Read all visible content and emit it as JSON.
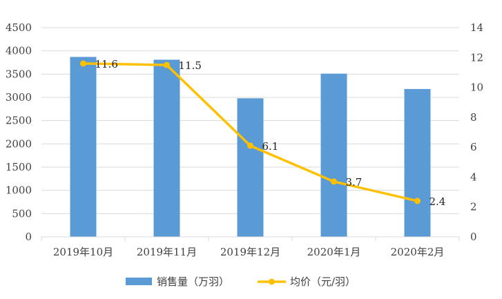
{
  "chart_data": {
    "type": "bar",
    "categories": [
      "2019年10月",
      "2019年11月",
      "2019年12月",
      "2020年1月",
      "2020年2月"
    ],
    "series": [
      {
        "name": "销售量（万羽）",
        "type": "bar",
        "axis": "left",
        "color": "#5b9bd5",
        "values": [
          3870,
          3810,
          2980,
          3510,
          3180
        ]
      },
      {
        "name": "均价（元/羽）",
        "type": "line",
        "axis": "right",
        "color": "#ffc000",
        "values": [
          11.6,
          11.5,
          6.1,
          3.7,
          2.4
        ],
        "data_labels": [
          "11.6",
          "11.5",
          "6.1",
          "3.7",
          "2.4"
        ]
      }
    ],
    "y_left": {
      "min": 0,
      "max": 4500,
      "ticks": [
        0,
        500,
        1000,
        1500,
        2000,
        2500,
        3000,
        3500,
        4000,
        4500
      ]
    },
    "y_right": {
      "min": 0,
      "max": 14,
      "ticks": [
        0,
        2,
        4,
        6,
        8,
        10,
        12,
        14
      ]
    },
    "grid": true,
    "legend": "bottom"
  }
}
